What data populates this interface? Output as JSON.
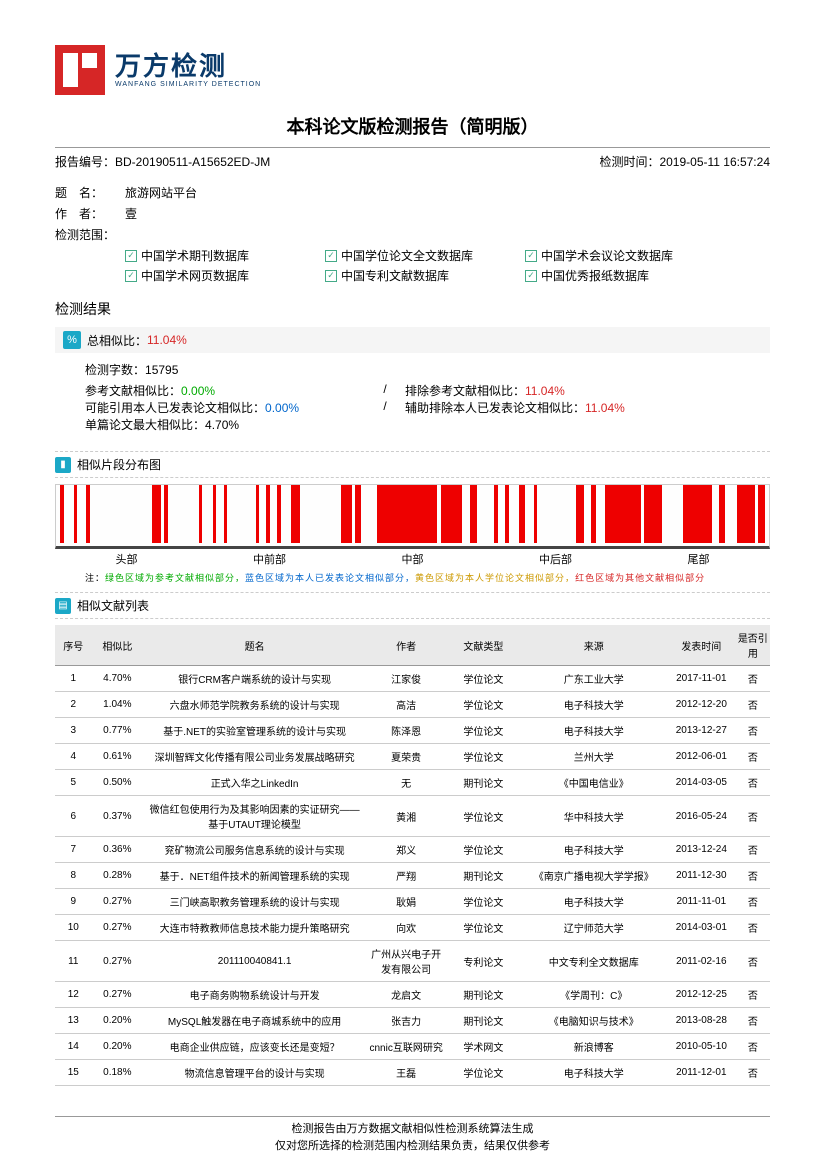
{
  "logo": {
    "cn": "万方检测",
    "en": "WANFANG SIMILARITY DETECTION"
  },
  "title": "本科论文版检测报告（简明版）",
  "meta": {
    "reportNoLabel": "报告编号：",
    "reportNo": "BD-20190511-A15652ED-JM",
    "timeLabel": "检测时间：",
    "time": "2019-05-11 16:57:24"
  },
  "info": {
    "titleLabel": "题　名：",
    "titleVal": "旅游网站平台",
    "authorLabel": "作　者：",
    "authorVal": "壹",
    "scopeLabel": "检测范围：",
    "scopes": [
      "中国学术期刊数据库",
      "中国学位论文全文数据库",
      "中国学术会议论文数据库",
      "中国学术网页数据库",
      "中国专利文献数据库",
      "中国优秀报纸数据库"
    ]
  },
  "result": {
    "heading": "检测结果",
    "totalLabel": "总相似比：",
    "totalVal": "11.04%",
    "wordsLabel": "检测字数：",
    "words": "15795",
    "refLabel": "参考文献相似比：",
    "refVal": "0.00%",
    "exRefLabel": "排除参考文献相似比：",
    "exRefVal": "11.04%",
    "selfLabel": "可能引用本人已发表论文相似比：",
    "selfVal": "0.00%",
    "exSelfLabel": "辅助排除本人已发表论文相似比：",
    "exSelfVal": "11.04%",
    "maxLabel": "单篇论文最大相似比：",
    "maxVal": "4.70%"
  },
  "dist": {
    "heading": "相似片段分布图",
    "labels": [
      "头部",
      "中前部",
      "中部",
      "中后部",
      "尾部"
    ],
    "bars": [
      {
        "l": 0.5,
        "w": 0.6
      },
      {
        "l": 2.5,
        "w": 0.5
      },
      {
        "l": 4.2,
        "w": 0.5
      },
      {
        "l": 13.5,
        "w": 1.2
      },
      {
        "l": 15.2,
        "w": 0.5
      },
      {
        "l": 20,
        "w": 0.5
      },
      {
        "l": 22,
        "w": 0.5
      },
      {
        "l": 23.5,
        "w": 0.5
      },
      {
        "l": 28,
        "w": 0.5
      },
      {
        "l": 29.5,
        "w": 0.5
      },
      {
        "l": 31,
        "w": 0.5
      },
      {
        "l": 33,
        "w": 1.2
      },
      {
        "l": 40,
        "w": 1.5
      },
      {
        "l": 42,
        "w": 0.8
      },
      {
        "l": 45,
        "w": 8.5
      },
      {
        "l": 54,
        "w": 3
      },
      {
        "l": 58,
        "w": 1
      },
      {
        "l": 61.5,
        "w": 0.5
      },
      {
        "l": 63,
        "w": 0.5
      },
      {
        "l": 65,
        "w": 0.8
      },
      {
        "l": 67,
        "w": 0.5
      },
      {
        "l": 73,
        "w": 1
      },
      {
        "l": 75,
        "w": 0.8
      },
      {
        "l": 77,
        "w": 5
      },
      {
        "l": 82.5,
        "w": 2.5
      },
      {
        "l": 88,
        "w": 4
      },
      {
        "l": 93,
        "w": 0.8
      },
      {
        "l": 95.5,
        "w": 2.5
      },
      {
        "l": 98.5,
        "w": 1
      }
    ],
    "noteLabel": "注：",
    "noteGreen": "绿色区域为参考文献相似部分，",
    "noteBlue": "蓝色区域为本人已发表论文相似部分，",
    "noteYellow": "黄色区域为本人学位论文相似部分，",
    "noteRed": "红色区域为其他文献相似部分"
  },
  "listHeading": "相似文献列表",
  "tableHeaders": [
    "序号",
    "相似比",
    "题名",
    "作者",
    "文献类型",
    "来源",
    "发表时间",
    "是否引用"
  ],
  "rows": [
    {
      "no": "1",
      "r": "4.70%",
      "t": "银行CRM客户端系统的设计与实现",
      "a": "江家俊",
      "ty": "学位论文",
      "s": "广东工业大学",
      "d": "2017-11-01",
      "c": "否"
    },
    {
      "no": "2",
      "r": "1.04%",
      "t": "六盘水师范学院教务系统的设计与实现",
      "a": "高洁",
      "ty": "学位论文",
      "s": "电子科技大学",
      "d": "2012-12-20",
      "c": "否"
    },
    {
      "no": "3",
      "r": "0.77%",
      "t": "基于.NET的实验室管理系统的设计与实现",
      "a": "陈泽恩",
      "ty": "学位论文",
      "s": "电子科技大学",
      "d": "2013-12-27",
      "c": "否"
    },
    {
      "no": "4",
      "r": "0.61%",
      "t": "深圳智辉文化传播有限公司业务发展战略研究",
      "a": "夏荣贵",
      "ty": "学位论文",
      "s": "兰州大学",
      "d": "2012-06-01",
      "c": "否"
    },
    {
      "no": "5",
      "r": "0.50%",
      "t": "正式入华之LinkedIn",
      "a": "无",
      "ty": "期刊论文",
      "s": "《中国电信业》",
      "d": "2014-03-05",
      "c": "否"
    },
    {
      "no": "6",
      "r": "0.37%",
      "t": "微信红包使用行为及其影响因素的实证研究——基于UTAUT理论模型",
      "a": "黄湘",
      "ty": "学位论文",
      "s": "华中科技大学",
      "d": "2016-05-24",
      "c": "否"
    },
    {
      "no": "7",
      "r": "0.36%",
      "t": "兖矿物流公司服务信息系统的设计与实现",
      "a": "郑义",
      "ty": "学位论文",
      "s": "电子科技大学",
      "d": "2013-12-24",
      "c": "否"
    },
    {
      "no": "8",
      "r": "0.28%",
      "t": "基于．NET组件技术的新闻管理系统的实现",
      "a": "严翔",
      "ty": "期刊论文",
      "s": "《南京广播电视大学学报》",
      "d": "2011-12-30",
      "c": "否"
    },
    {
      "no": "9",
      "r": "0.27%",
      "t": "三门峡高职教务管理系统的设计与实现",
      "a": "耿娟",
      "ty": "学位论文",
      "s": "电子科技大学",
      "d": "2011-11-01",
      "c": "否"
    },
    {
      "no": "10",
      "r": "0.27%",
      "t": "大连市特教教师信息技术能力提升策略研究",
      "a": "向欢",
      "ty": "学位论文",
      "s": "辽宁师范大学",
      "d": "2014-03-01",
      "c": "否"
    },
    {
      "no": "11",
      "r": "0.27%",
      "t": "201110040841.1",
      "a": "广州从兴电子开发有限公司",
      "ty": "专利论文",
      "s": "中文专利全文数据库",
      "d": "2011-02-16",
      "c": "否"
    },
    {
      "no": "12",
      "r": "0.27%",
      "t": "电子商务购物系统设计与开发",
      "a": "龙启文",
      "ty": "期刊论文",
      "s": "《学周刊：C》",
      "d": "2012-12-25",
      "c": "否"
    },
    {
      "no": "13",
      "r": "0.20%",
      "t": "MySQL触发器在电子商城系统中的应用",
      "a": "张吉力",
      "ty": "期刊论文",
      "s": "《电脑知识与技术》",
      "d": "2013-08-28",
      "c": "否"
    },
    {
      "no": "14",
      "r": "0.20%",
      "t": "电商企业供应链，应该变长还是变短？",
      "a": "cnnic互联网研究",
      "ty": "学术网文",
      "s": "新浪博客",
      "d": "2010-05-10",
      "c": "否"
    },
    {
      "no": "15",
      "r": "0.18%",
      "t": "物流信息管理平台的设计与实现",
      "a": "王磊",
      "ty": "学位论文",
      "s": "电子科技大学",
      "d": "2011-12-01",
      "c": "否"
    }
  ],
  "footer": {
    "line1": "检测报告由万方数据文献相似性检测系统算法生成",
    "line2": "仅对您所选择的检测范围内检测结果负责，结果仅供参考"
  }
}
